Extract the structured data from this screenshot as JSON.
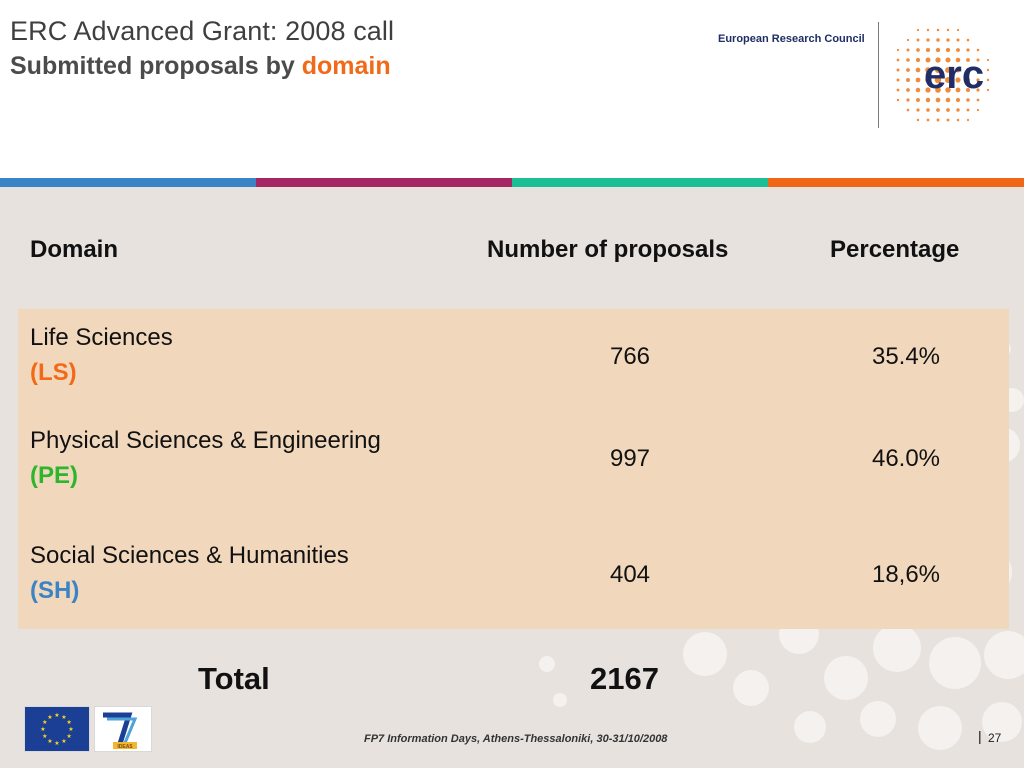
{
  "header": {
    "title_line1": "ERC Advanced Grant: 2008 call",
    "title_line2_prefix": "Submitted proposals by",
    "title_line2_highlight": "domain",
    "erc_label": "European Research Council",
    "erc_logo_text": "erc"
  },
  "band_colors": [
    "#3a83c5",
    "#a42663",
    "#1bbf95",
    "#f06718"
  ],
  "table": {
    "headers": {
      "domain": "Domain",
      "number": "Number of proposals",
      "percentage": "Percentage"
    },
    "rows": [
      {
        "name": "Life Sciences",
        "code": "(LS)",
        "code_color": "#f26a18",
        "number": "766",
        "percentage": "35.4%"
      },
      {
        "name": "Physical Sciences & Engineering",
        "code": "(PE)",
        "code_color": "#2db52d",
        "number": "997",
        "percentage": "46.0%"
      },
      {
        "name": "Social Sciences & Humanities",
        "code": "(SH)",
        "code_color": "#3a83c5",
        "number": "404",
        "percentage": "18,6%"
      }
    ],
    "total_label": "Total",
    "total_value": "2167"
  },
  "footer": {
    "text": "FP7 Information Days, Athens-Thessaloniki, 30-31/10/2008",
    "separator": "|",
    "page_number": "27",
    "fp7_logo_text": "IDEAS"
  }
}
